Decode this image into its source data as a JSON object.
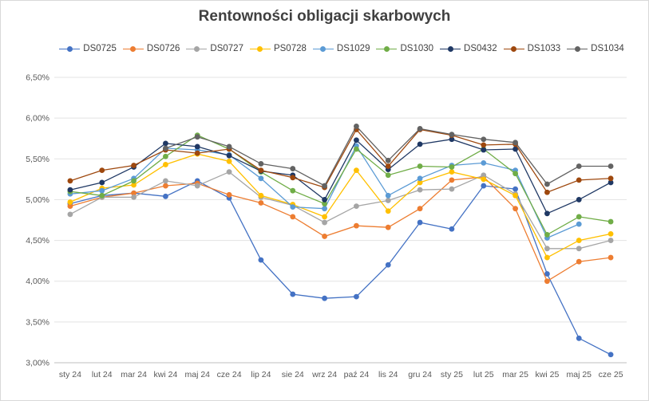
{
  "chart_data": {
    "type": "line",
    "title": "Rentowności obligacji skarbowych",
    "xlabel": "",
    "ylabel": "",
    "ylim": [
      0.03,
      0.065
    ],
    "y_ticks": [
      "3,00%",
      "3,50%",
      "4,00%",
      "4,50%",
      "5,00%",
      "5,50%",
      "6,00%",
      "6,50%"
    ],
    "y_tick_values": [
      0.03,
      0.035,
      0.04,
      0.045,
      0.05,
      0.055,
      0.06,
      0.065
    ],
    "x_tick_labels": [
      "sty 24",
      "lut 24",
      "mar 24",
      "kwi 24",
      "maj 24",
      "cze 24",
      "lip 24",
      "sie 24",
      "wrz 24",
      "paź 24",
      "lis 24",
      "gru 24",
      "sty 25",
      "lut 25",
      "mar 25",
      "kwi 25",
      "maj 25",
      "cze 25"
    ],
    "legend_position": "top",
    "grid": "horizontal",
    "series": [
      {
        "name": "DS0725",
        "color": "#4472C4",
        "values": [
          0.0495,
          0.0505,
          0.0508,
          0.0504,
          0.0523,
          0.0502,
          0.0426,
          0.0384,
          0.0379,
          0.0381,
          0.042,
          0.0472,
          0.0464,
          0.0517,
          0.0513,
          0.0409,
          0.033,
          0.031
        ]
      },
      {
        "name": "DS0726",
        "color": "#ED7D31",
        "values": [
          0.0492,
          0.0503,
          0.0508,
          0.0517,
          0.052,
          0.0506,
          0.0496,
          0.0479,
          0.0455,
          0.0468,
          0.0466,
          0.0489,
          0.0524,
          0.0528,
          0.0489,
          0.04,
          0.0424,
          0.0429
        ]
      },
      {
        "name": "DS0727",
        "color": "#A5A5A5",
        "values": [
          0.0482,
          0.0503,
          0.0503,
          0.0523,
          0.0517,
          0.0534,
          0.0503,
          0.0493,
          0.0472,
          0.0492,
          0.0499,
          0.0512,
          0.0513,
          0.053,
          0.0507,
          0.044,
          0.044,
          0.045
        ]
      },
      {
        "name": "PS0728",
        "color": "#FFC000",
        "values": [
          0.0497,
          0.0514,
          0.0518,
          0.0543,
          0.0556,
          0.0547,
          0.0505,
          0.0494,
          0.0479,
          0.0536,
          0.0486,
          0.0521,
          0.0534,
          0.0525,
          0.0505,
          0.0429,
          0.045,
          0.0458
        ]
      },
      {
        "name": "DS1029",
        "color": "#5B9BD5",
        "values": [
          0.0507,
          0.0511,
          0.0526,
          0.0563,
          0.0561,
          0.0555,
          0.0526,
          0.0491,
          0.0489,
          0.0566,
          0.0505,
          0.0526,
          0.0542,
          0.0545,
          0.0536,
          0.0453,
          0.047,
          null
        ]
      },
      {
        "name": "DS1030",
        "color": "#70AD47",
        "values": [
          0.051,
          0.0505,
          0.0523,
          0.0553,
          0.0579,
          0.0562,
          0.0534,
          0.0511,
          0.0495,
          0.0562,
          0.053,
          0.0541,
          0.054,
          0.0562,
          0.0532,
          0.0457,
          0.0479,
          0.0473
        ]
      },
      {
        "name": "DS0432",
        "color": "#1F3864",
        "values": [
          0.0512,
          0.0521,
          0.054,
          0.0569,
          0.0565,
          0.0554,
          0.0535,
          0.053,
          0.05,
          0.0573,
          0.0537,
          0.0568,
          0.0574,
          0.0561,
          0.0562,
          0.0483,
          0.05,
          0.0521
        ]
      },
      {
        "name": "DS1033",
        "color": "#9E480E",
        "values": [
          0.0523,
          0.0536,
          0.0542,
          0.0561,
          0.0557,
          0.0562,
          0.0536,
          0.0527,
          0.0515,
          0.0586,
          0.0541,
          0.0586,
          0.0579,
          0.0567,
          0.0568,
          0.0509,
          0.0524,
          0.0526
        ]
      },
      {
        "name": "DS1034",
        "color": "#636363",
        "values": [
          null,
          null,
          null,
          0.0563,
          0.0577,
          0.0565,
          0.0544,
          0.0538,
          0.0517,
          0.059,
          0.0548,
          0.0587,
          0.058,
          0.0574,
          0.057,
          0.0519,
          0.0541,
          0.0541
        ]
      }
    ]
  }
}
